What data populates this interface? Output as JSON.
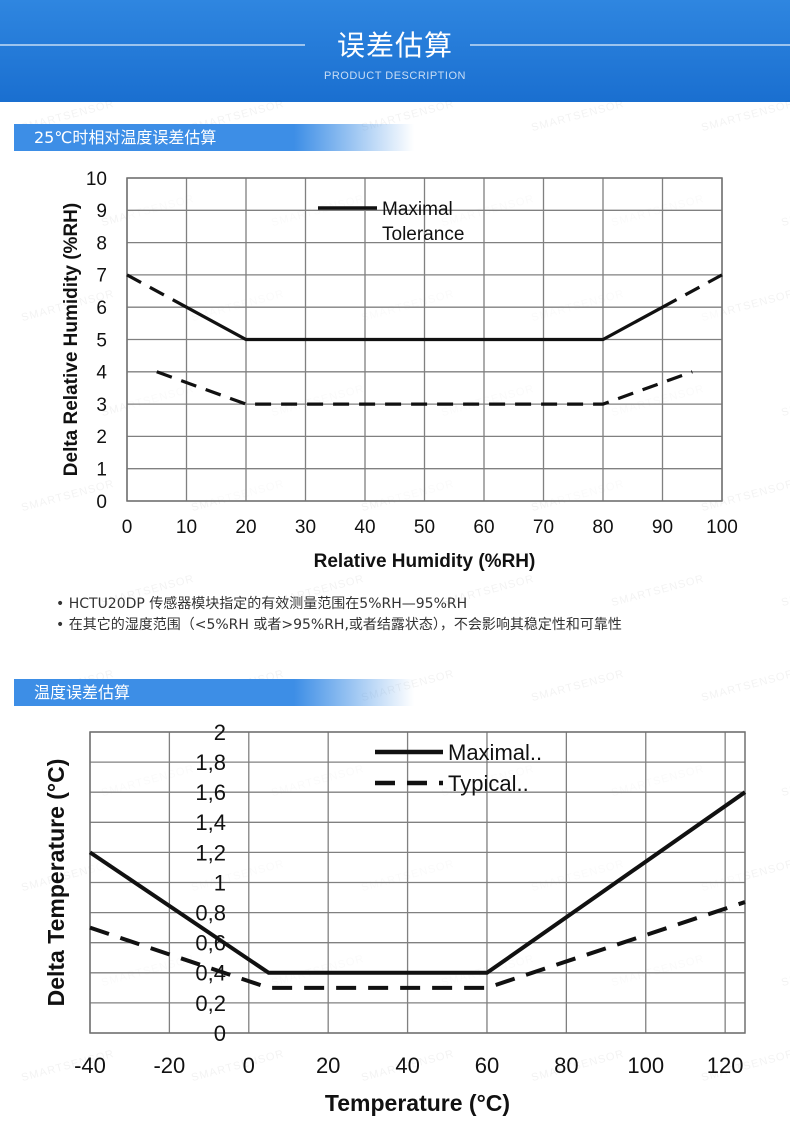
{
  "header": {
    "title": "误差估算",
    "subtitle": "PRODUCT DESCRIPTION"
  },
  "section1": {
    "title": "25℃时相对温度误差估算"
  },
  "section2": {
    "title": "温度误差估算"
  },
  "notes": [
    "• HCTU20DP 传感器模块指定的有效测量范围在5%RH—95%RH",
    "• 在其它的湿度范围（<5%RH 或者>95%RH,或者结露状态），不会影响其稳定性和可靠性"
  ],
  "watermark": "SMARTSENSOR",
  "chart_data": [
    {
      "type": "line",
      "title": "",
      "xlabel": "Relative Humidity (%RH)",
      "ylabel": "Delta Relative Humidity (%RH)",
      "xlim": [
        0,
        100
      ],
      "ylim": [
        0,
        10
      ],
      "xticks": [
        0,
        10,
        20,
        30,
        40,
        50,
        60,
        70,
        80,
        90,
        100
      ],
      "yticks": [
        0,
        1,
        2,
        3,
        4,
        5,
        6,
        7,
        8,
        9,
        10
      ],
      "x_tick_labels": [
        "0",
        "10",
        "20",
        "30",
        "40",
        "50",
        "60",
        "70",
        "80",
        "90",
        "100"
      ],
      "y_tick_labels": [
        "0",
        "1",
        "2",
        "3",
        "4",
        "5",
        "6",
        "7",
        "8",
        "9",
        "10"
      ],
      "grid": true,
      "legend_position": "top-left",
      "series": [
        {
          "name": "Maximal Tolerance",
          "legend_lines": [
            "Maximal",
            "Tolerance"
          ],
          "segments": [
            {
              "style": "dashed",
              "x": [
                0,
                10
              ],
              "y": [
                7,
                6
              ]
            },
            {
              "style": "solid",
              "x": [
                10,
                20,
                80,
                90
              ],
              "y": [
                6,
                5,
                5,
                6
              ]
            },
            {
              "style": "dashed",
              "x": [
                90,
                100
              ],
              "y": [
                6,
                7
              ]
            }
          ]
        },
        {
          "name": "",
          "segments": [
            {
              "style": "dashed",
              "x": [
                5,
                20,
                80,
                95
              ],
              "y": [
                4,
                3,
                3,
                4
              ]
            }
          ]
        }
      ]
    },
    {
      "type": "line",
      "title": "",
      "xlabel": "Temperature (°C)",
      "ylabel": "Delta Temperature (°C)",
      "xlim": [
        -40,
        125
      ],
      "ylim": [
        0,
        2
      ],
      "xticks": [
        -40,
        -20,
        0,
        20,
        40,
        60,
        80,
        100,
        120
      ],
      "yticks": [
        0,
        0.2,
        0.4,
        0.6,
        0.8,
        1,
        1.2,
        1.4,
        1.6,
        1.8,
        2
      ],
      "x_tick_labels": [
        "-40",
        "-20",
        "0",
        "20",
        "40",
        "60",
        "80",
        "100",
        "120"
      ],
      "y_tick_labels": [
        "0",
        "0,2",
        "0,4",
        "0,6",
        "0,8",
        "1",
        "1,2",
        "1,4",
        "1,6",
        "1,8",
        "2"
      ],
      "grid": true,
      "legend_position": "top-center",
      "series": [
        {
          "name": "Maximal..",
          "segments": [
            {
              "style": "solid",
              "x": [
                -40,
                5,
                60,
                125
              ],
              "y": [
                1.2,
                0.4,
                0.4,
                1.6
              ]
            }
          ]
        },
        {
          "name": "Typical..",
          "segments": [
            {
              "style": "dashed",
              "x": [
                -40,
                5,
                60,
                125
              ],
              "y": [
                0.7,
                0.3,
                0.3,
                0.87
              ]
            }
          ]
        }
      ]
    }
  ]
}
